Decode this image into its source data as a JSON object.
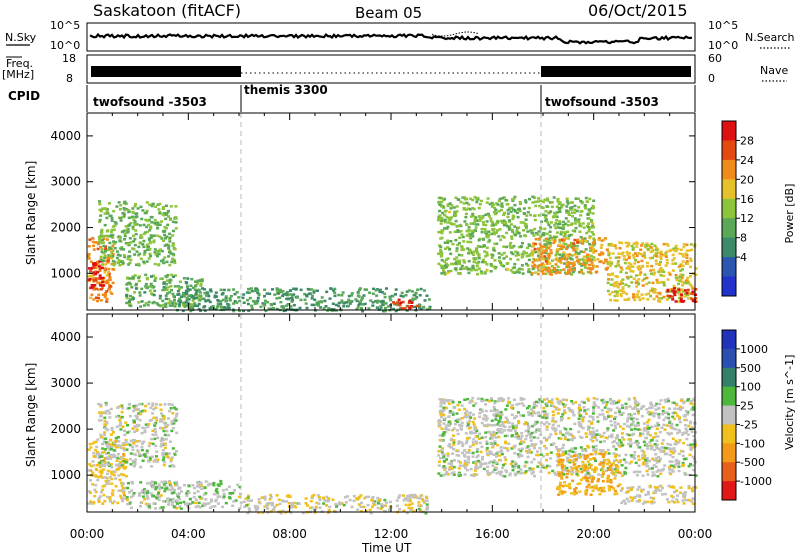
{
  "header": {
    "station": "Saskatoon (fitACF)",
    "beam": "Beam 05",
    "date": "06/Oct/2015"
  },
  "strip_panels": {
    "nsky": {
      "label": "N.Sky",
      "tick_top": "10^5",
      "tick_bottom": "10^0"
    },
    "nsearch": {
      "label": "N.Search",
      "tick_top": "10^5",
      "tick_bottom": "10^0"
    },
    "freq": {
      "label_line1": "Freq.",
      "label_line2": "[MHz]",
      "tick_top": "18",
      "tick_bottom": "8"
    },
    "nave": {
      "label": "Nave",
      "tick_top": "60",
      "tick_bottom": "0"
    },
    "cpid": {
      "label": "CPID",
      "segments": [
        {
          "name": "twofsound -3503",
          "start_hour": 0,
          "end_hour": 6
        },
        {
          "name": "themis 3300",
          "start_hour": 6,
          "end_hour": 18
        },
        {
          "name": "twofsound -3503",
          "start_hour": 18,
          "end_hour": 24
        }
      ]
    }
  },
  "colors": {
    "power": [
      "#2233cc",
      "#2a56b0",
      "#3d8a6a",
      "#5aa858",
      "#8cc43a",
      "#e6c12a",
      "#f08b1c",
      "#e24a12",
      "#dd1111"
    ],
    "velocity": [
      "#2233bb",
      "#2a4fb0",
      "#35806a",
      "#4eb83c",
      "#c2c2c2",
      "#f0c01c",
      "#f39a18",
      "#e6621a",
      "#e01818"
    ]
  },
  "chart_data": [
    {
      "type": "heatmap",
      "title": "Power",
      "xlabel": "Time UT",
      "ylabel": "Slant Range [km]",
      "xlim": [
        0,
        24
      ],
      "ylim": [
        200,
        4500
      ],
      "x_ticks": [
        "00:00",
        "04:00",
        "08:00",
        "12:00",
        "16:00",
        "20:00",
        "00:00"
      ],
      "y_ticks": [
        "1000",
        "2000",
        "3000",
        "4000"
      ],
      "colorbar": {
        "label": "Power [dB]",
        "ticks": [
          "28",
          "24",
          "20",
          "16",
          "12",
          "8",
          "4"
        ],
        "range": [
          0,
          30
        ]
      },
      "regions": [
        {
          "x": [
            0,
            1.0
          ],
          "y": [
            400,
            1800
          ],
          "level": 22
        },
        {
          "x": [
            0,
            0.6
          ],
          "y": [
            700,
            1300
          ],
          "level": 28
        },
        {
          "x": [
            0.4,
            3.5
          ],
          "y": [
            1200,
            2600
          ],
          "level": 13
        },
        {
          "x": [
            1.5,
            4.5
          ],
          "y": [
            300,
            1000
          ],
          "level": 12
        },
        {
          "x": [
            3.5,
            13.5
          ],
          "y": [
            200,
            700
          ],
          "level": 10
        },
        {
          "x": [
            12,
            13
          ],
          "y": [
            250,
            450
          ],
          "level": 26
        },
        {
          "x": [
            13.8,
            20
          ],
          "y": [
            1000,
            2700
          ],
          "level": 14
        },
        {
          "x": [
            17.5,
            20.5
          ],
          "y": [
            1000,
            1800
          ],
          "level": 21
        },
        {
          "x": [
            20.5,
            24
          ],
          "y": [
            400,
            1700
          ],
          "level": 18
        },
        {
          "x": [
            22.8,
            24
          ],
          "y": [
            400,
            700
          ],
          "level": 28
        }
      ]
    },
    {
      "type": "heatmap",
      "title": "Velocity",
      "xlabel": "Time UT",
      "ylabel": "Slant Range [km]",
      "xlim": [
        0,
        24
      ],
      "ylim": [
        200,
        4500
      ],
      "x_ticks": [
        "00:00",
        "04:00",
        "08:00",
        "12:00",
        "16:00",
        "20:00",
        "00:00"
      ],
      "y_ticks": [
        "1000",
        "2000",
        "3000",
        "4000"
      ],
      "colorbar": {
        "label": "Velocity [m s^-1]",
        "ticks": [
          "1000",
          "500",
          "100",
          "25",
          "-25",
          "-100",
          "-500",
          "-1000"
        ],
        "range": [
          -1200,
          1200
        ]
      },
      "regions": [
        {
          "x": [
            0,
            1.5
          ],
          "y": [
            400,
            1800
          ],
          "level": -200
        },
        {
          "x": [
            0.4,
            3.5
          ],
          "y": [
            1200,
            2600
          ],
          "level": 0
        },
        {
          "x": [
            1.5,
            6
          ],
          "y": [
            300,
            900
          ],
          "level": 60
        },
        {
          "x": [
            6,
            13.5
          ],
          "y": [
            200,
            600
          ],
          "level": -60
        },
        {
          "x": [
            13.8,
            24
          ],
          "y": [
            1000,
            2700
          ],
          "level": 0
        },
        {
          "x": [
            18.5,
            21
          ],
          "y": [
            600,
            1500
          ],
          "level": -400
        },
        {
          "x": [
            21,
            24
          ],
          "y": [
            400,
            800
          ],
          "level": -90
        }
      ]
    }
  ]
}
